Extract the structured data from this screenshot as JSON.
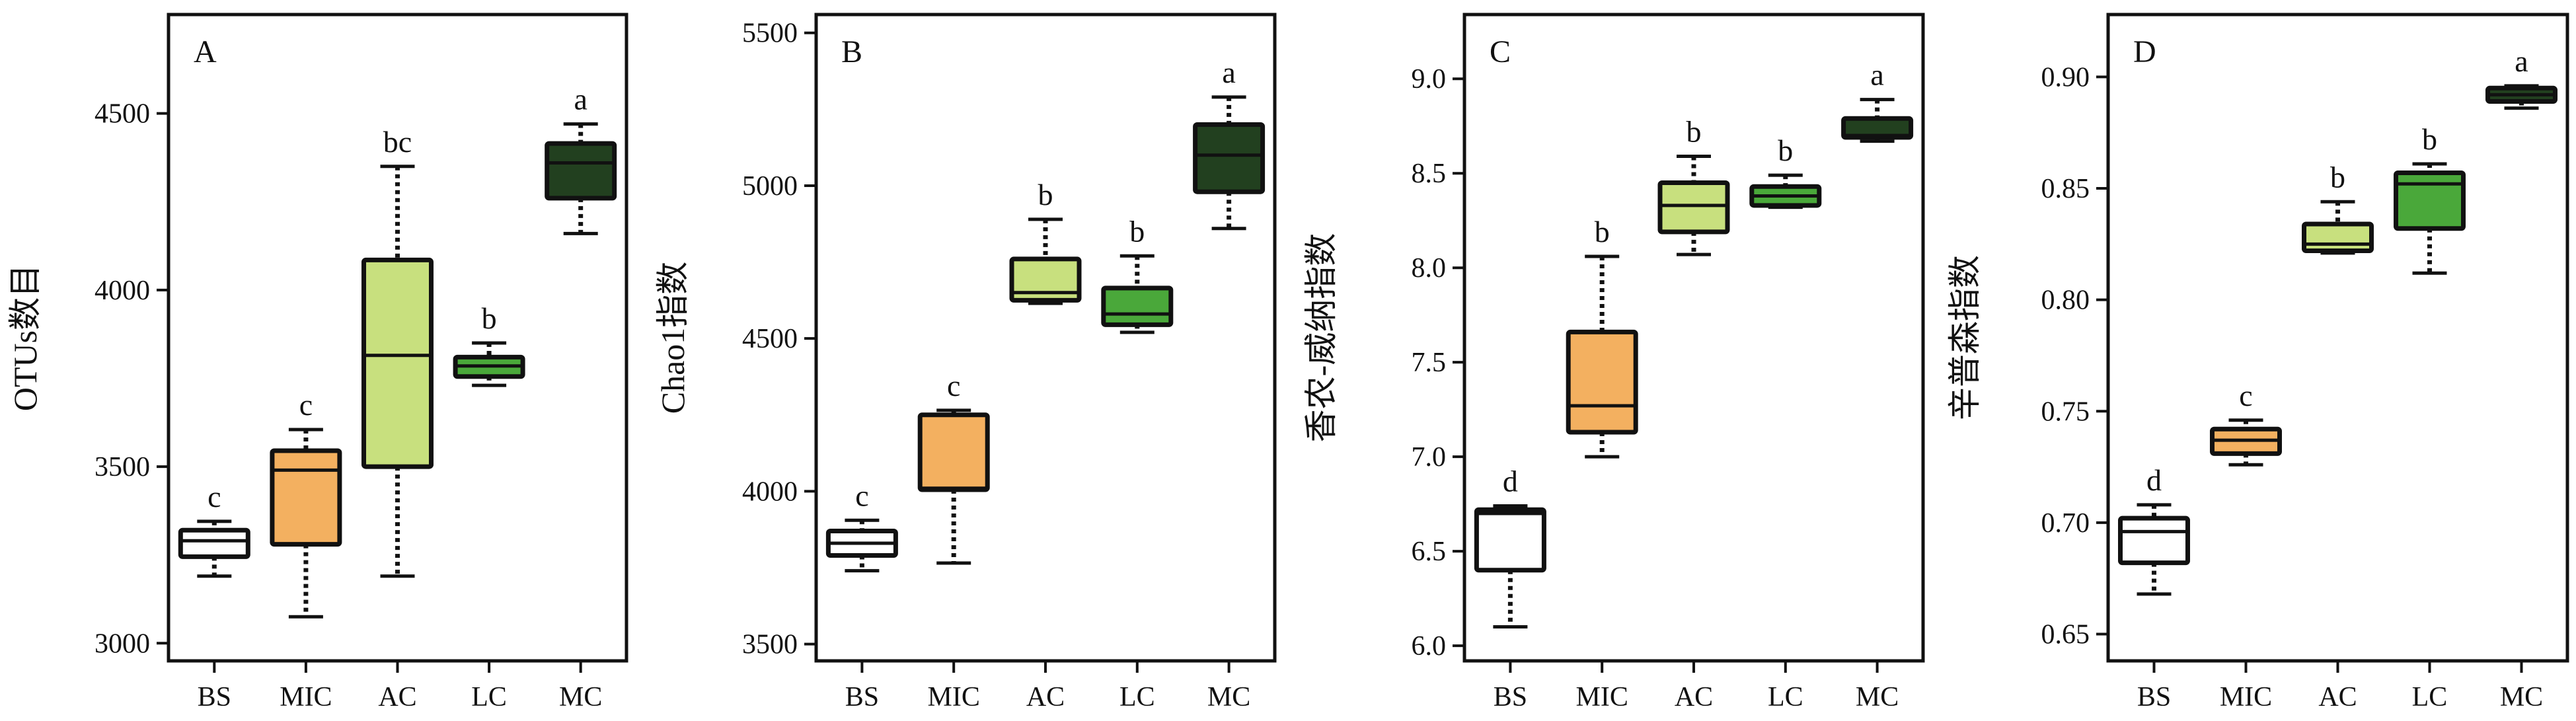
{
  "figure": {
    "categories": [
      "BS",
      "MIC",
      "AC",
      "LC",
      "MC"
    ],
    "colors": {
      "BS": "#ffffff",
      "MIC": "#f3b060",
      "AC": "#c8e07e",
      "LC": "#4aa83a",
      "MC": "#22401f",
      "stroke": "#111111"
    }
  },
  "chart_data": [
    {
      "type": "box",
      "panel": "A",
      "ylabel": "OTUs数目",
      "ylim": [
        2950,
        4780
      ],
      "yticks": [
        3000,
        3500,
        4000,
        4500
      ],
      "categories": [
        "BS",
        "MIC",
        "AC",
        "LC",
        "MC"
      ],
      "boxes": [
        {
          "category": "BS",
          "min": 3190,
          "q1": 3245,
          "median": 3290,
          "q3": 3320,
          "max": 3345,
          "label": "c"
        },
        {
          "category": "MIC",
          "min": 3075,
          "q1": 3280,
          "median": 3490,
          "q3": 3545,
          "max": 3605,
          "label": "c"
        },
        {
          "category": "AC",
          "min": 3190,
          "q1": 3500,
          "median": 3815,
          "q3": 4085,
          "max": 4350,
          "label": "bc"
        },
        {
          "category": "LC",
          "min": 3730,
          "q1": 3755,
          "median": 3785,
          "q3": 3810,
          "max": 3850,
          "label": "b"
        },
        {
          "category": "MC",
          "min": 4160,
          "q1": 4260,
          "median": 4360,
          "q3": 4415,
          "max": 4470,
          "label": "a"
        }
      ]
    },
    {
      "type": "box",
      "panel": "B",
      "ylabel": "Chao1指数",
      "ylim": [
        3445,
        5560
      ],
      "yticks": [
        3500,
        4000,
        4500,
        5000,
        5500
      ],
      "categories": [
        "BS",
        "MIC",
        "AC",
        "LC",
        "MC"
      ],
      "boxes": [
        {
          "category": "BS",
          "min": 3740,
          "q1": 3790,
          "median": 3830,
          "q3": 3870,
          "max": 3905,
          "label": "c"
        },
        {
          "category": "MIC",
          "min": 3765,
          "q1": 4005,
          "median": 4010,
          "q3": 4250,
          "max": 4265,
          "label": "c"
        },
        {
          "category": "AC",
          "min": 4615,
          "q1": 4625,
          "median": 4650,
          "q3": 4760,
          "max": 4890,
          "label": "b"
        },
        {
          "category": "LC",
          "min": 4520,
          "q1": 4545,
          "median": 4580,
          "q3": 4665,
          "max": 4770,
          "label": "b"
        },
        {
          "category": "MC",
          "min": 4860,
          "q1": 4980,
          "median": 5100,
          "q3": 5200,
          "max": 5290,
          "label": "a"
        }
      ]
    },
    {
      "type": "box",
      "panel": "C",
      "ylabel": "香农-威纳指数",
      "ylim": [
        5.92,
        9.34
      ],
      "yticks": [
        6.0,
        6.5,
        7.0,
        7.5,
        8.0,
        8.5,
        9.0
      ],
      "categories": [
        "BS",
        "MIC",
        "AC",
        "LC",
        "MC"
      ],
      "boxes": [
        {
          "category": "BS",
          "min": 6.1,
          "q1": 6.4,
          "median": 6.7,
          "q3": 6.72,
          "max": 6.74,
          "label": "d"
        },
        {
          "category": "MIC",
          "min": 7.0,
          "q1": 7.13,
          "median": 7.27,
          "q3": 7.66,
          "max": 8.06,
          "label": "b"
        },
        {
          "category": "AC",
          "min": 8.07,
          "q1": 8.19,
          "median": 8.33,
          "q3": 8.45,
          "max": 8.59,
          "label": "b"
        },
        {
          "category": "LC",
          "min": 8.32,
          "q1": 8.33,
          "median": 8.38,
          "q3": 8.43,
          "max": 8.49,
          "label": "b"
        },
        {
          "category": "MC",
          "min": 8.67,
          "q1": 8.69,
          "median": 8.7,
          "q3": 8.79,
          "max": 8.89,
          "label": "a"
        }
      ]
    },
    {
      "type": "box",
      "panel": "D",
      "ylabel": "辛普森指数",
      "ylim": [
        0.638,
        0.928
      ],
      "yticks": [
        0.65,
        0.7,
        0.75,
        0.8,
        0.85,
        0.9
      ],
      "categories": [
        "BS",
        "MIC",
        "AC",
        "LC",
        "MC"
      ],
      "boxes": [
        {
          "category": "BS",
          "min": 0.668,
          "q1": 0.682,
          "median": 0.696,
          "q3": 0.702,
          "max": 0.708,
          "label": "d"
        },
        {
          "category": "MIC",
          "min": 0.726,
          "q1": 0.731,
          "median": 0.737,
          "q3": 0.742,
          "max": 0.746,
          "label": "c"
        },
        {
          "category": "AC",
          "min": 0.821,
          "q1": 0.822,
          "median": 0.825,
          "q3": 0.834,
          "max": 0.844,
          "label": "b"
        },
        {
          "category": "LC",
          "min": 0.812,
          "q1": 0.832,
          "median": 0.852,
          "q3": 0.857,
          "max": 0.861,
          "label": "b"
        },
        {
          "category": "MC",
          "min": 0.886,
          "q1": 0.889,
          "median": 0.892,
          "q3": 0.895,
          "max": 0.896,
          "label": "a"
        }
      ]
    }
  ]
}
